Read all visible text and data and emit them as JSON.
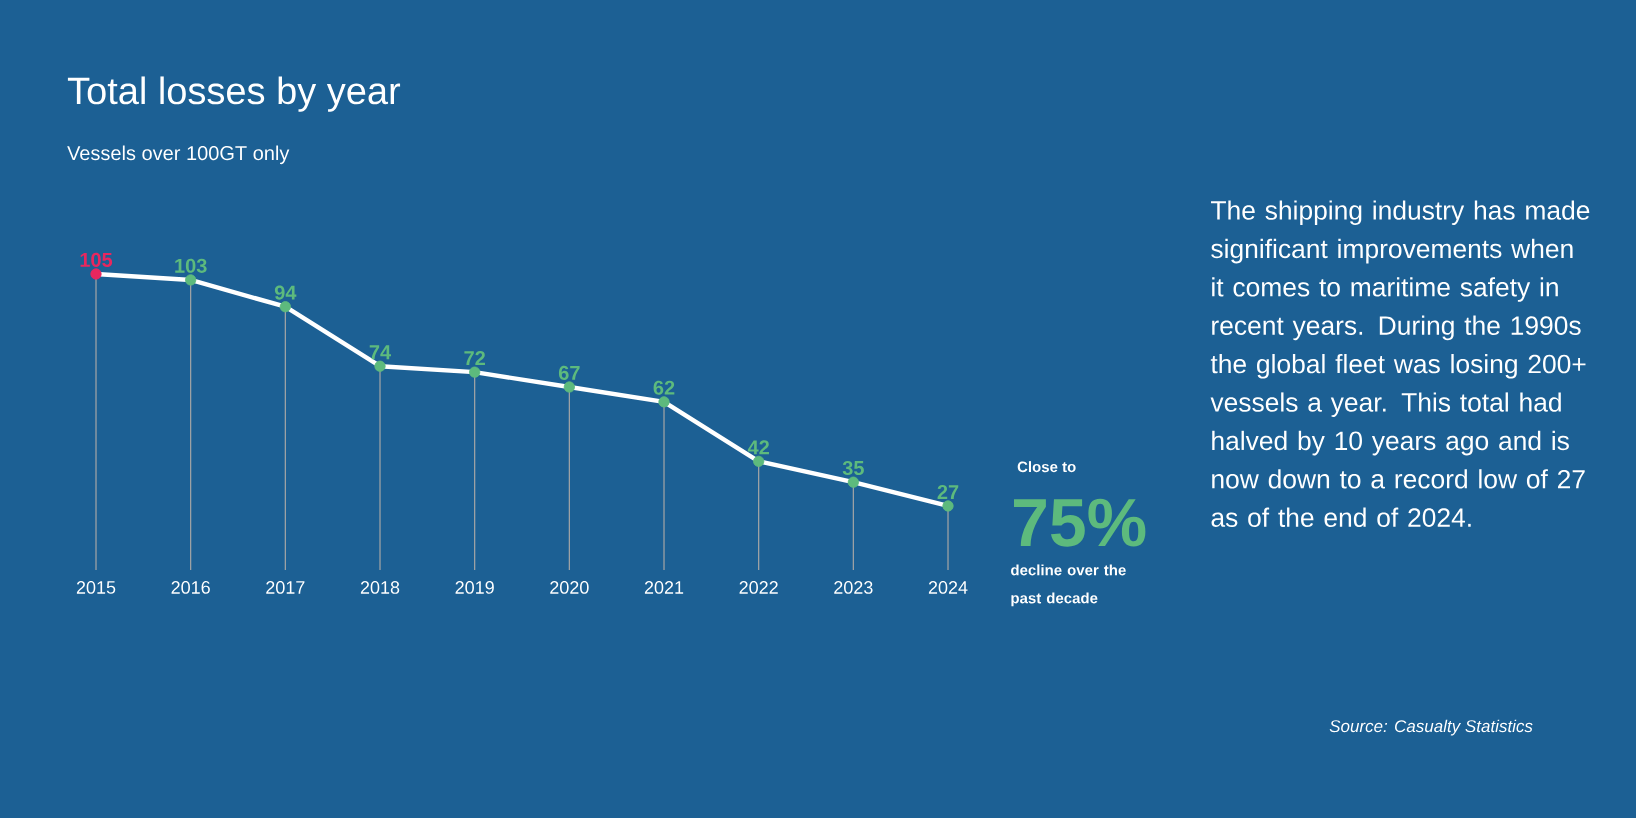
{
  "chart_data": {
    "type": "line",
    "title": "Total losses by year",
    "subtitle": "Vessels over 100GT only",
    "x": [
      2015,
      2016,
      2017,
      2018,
      2019,
      2020,
      2021,
      2022,
      2023,
      2024
    ],
    "xlim": [
      2015,
      2024
    ],
    "xticks": [
      2015,
      2016,
      2017,
      2018,
      2019,
      2020,
      2021,
      2022,
      2023,
      2024
    ],
    "series": [
      {
        "color": "#ffffff",
        "values": [
          105,
          103,
          94,
          74,
          72,
          67,
          62,
          42,
          35,
          27
        ],
        "colors": [
          "#e8275e",
          "#5dba7d",
          "#5dba7d",
          "#5dba7d",
          "#5dba7d",
          "#5dba7d",
          "#5dba7d",
          "#5dba7d",
          "#5dba7d",
          "#5dba7d"
        ]
      }
    ],
    "marker": "circle",
    "data_labels": true,
    "grid": "x",
    "annotations": [
      "Close to",
      "75%",
      "decline over the past decade",
      "The shipping industry has made significant improvements when it comes to maritime safety in recent years. During the 1990s the global fleet was losing 200+ vessels a year. This total had halved by 10 years ago and is now down to a record low of 27 as of the end of 2024.",
      "Source: Casualty Statistics"
    ]
  }
}
